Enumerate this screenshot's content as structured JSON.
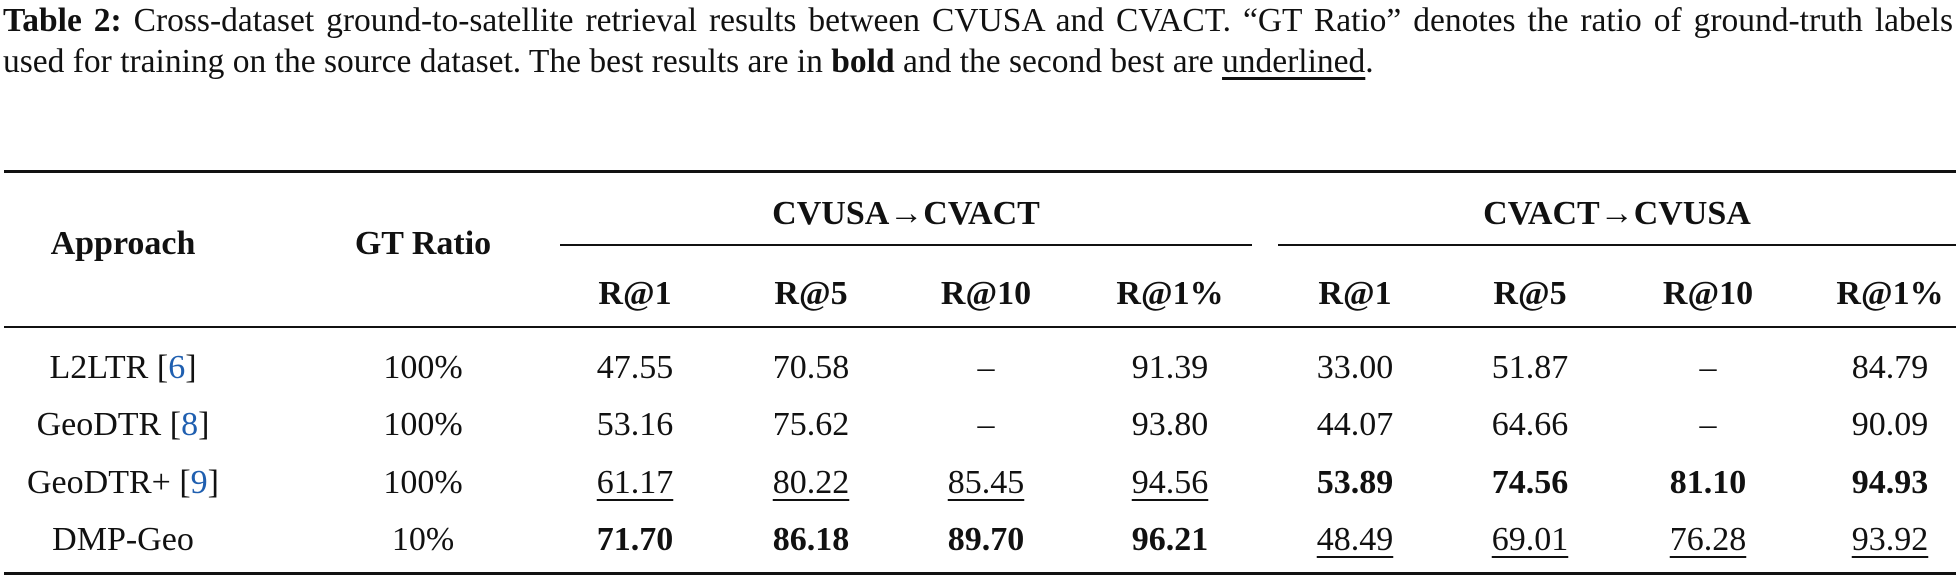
{
  "caption": {
    "label": "Table 2:",
    "text_before_bold": "Cross-dataset ground-to-satellite retrieval results between CVUSA and CVACT. “GT Ratio” denotes the ratio of ground-truth labels used for training on the source dataset. The best results are in",
    "bold_word": "bold",
    "text_between": "and the second best are",
    "underline_word": "underlined",
    "text_end": "."
  },
  "table": {
    "header": {
      "approach": "Approach",
      "gt_ratio": "GT Ratio",
      "groups": [
        "CVUSA→CVACT",
        "CVACT→CVUSA"
      ],
      "metrics": [
        "R@1",
        "R@5",
        "R@10",
        "R@1%",
        "R@1",
        "R@5",
        "R@10",
        "R@1%"
      ]
    },
    "rows": [
      {
        "approach": "L2LTR",
        "ref": "6",
        "gt_ratio": "100%",
        "cells": [
          "47.55",
          "70.58",
          "–",
          "91.39",
          "33.00",
          "51.87",
          "–",
          "84.79"
        ]
      },
      {
        "approach": "GeoDTR",
        "ref": "8",
        "gt_ratio": "100%",
        "cells": [
          "53.16",
          "75.62",
          "–",
          "93.80",
          "44.07",
          "64.66",
          "–",
          "90.09"
        ]
      },
      {
        "approach": "GeoDTR+",
        "ref": "9",
        "gt_ratio": "100%",
        "cells": [
          "61.17",
          "80.22",
          "85.45",
          "94.56",
          "53.89",
          "74.56",
          "81.10",
          "94.93"
        ]
      },
      {
        "approach": "DMP-Geo",
        "ref": null,
        "gt_ratio": "10%",
        "cells": [
          "71.70",
          "86.18",
          "89.70",
          "96.21",
          "48.49",
          "69.01",
          "76.28",
          "93.92"
        ]
      }
    ]
  }
}
